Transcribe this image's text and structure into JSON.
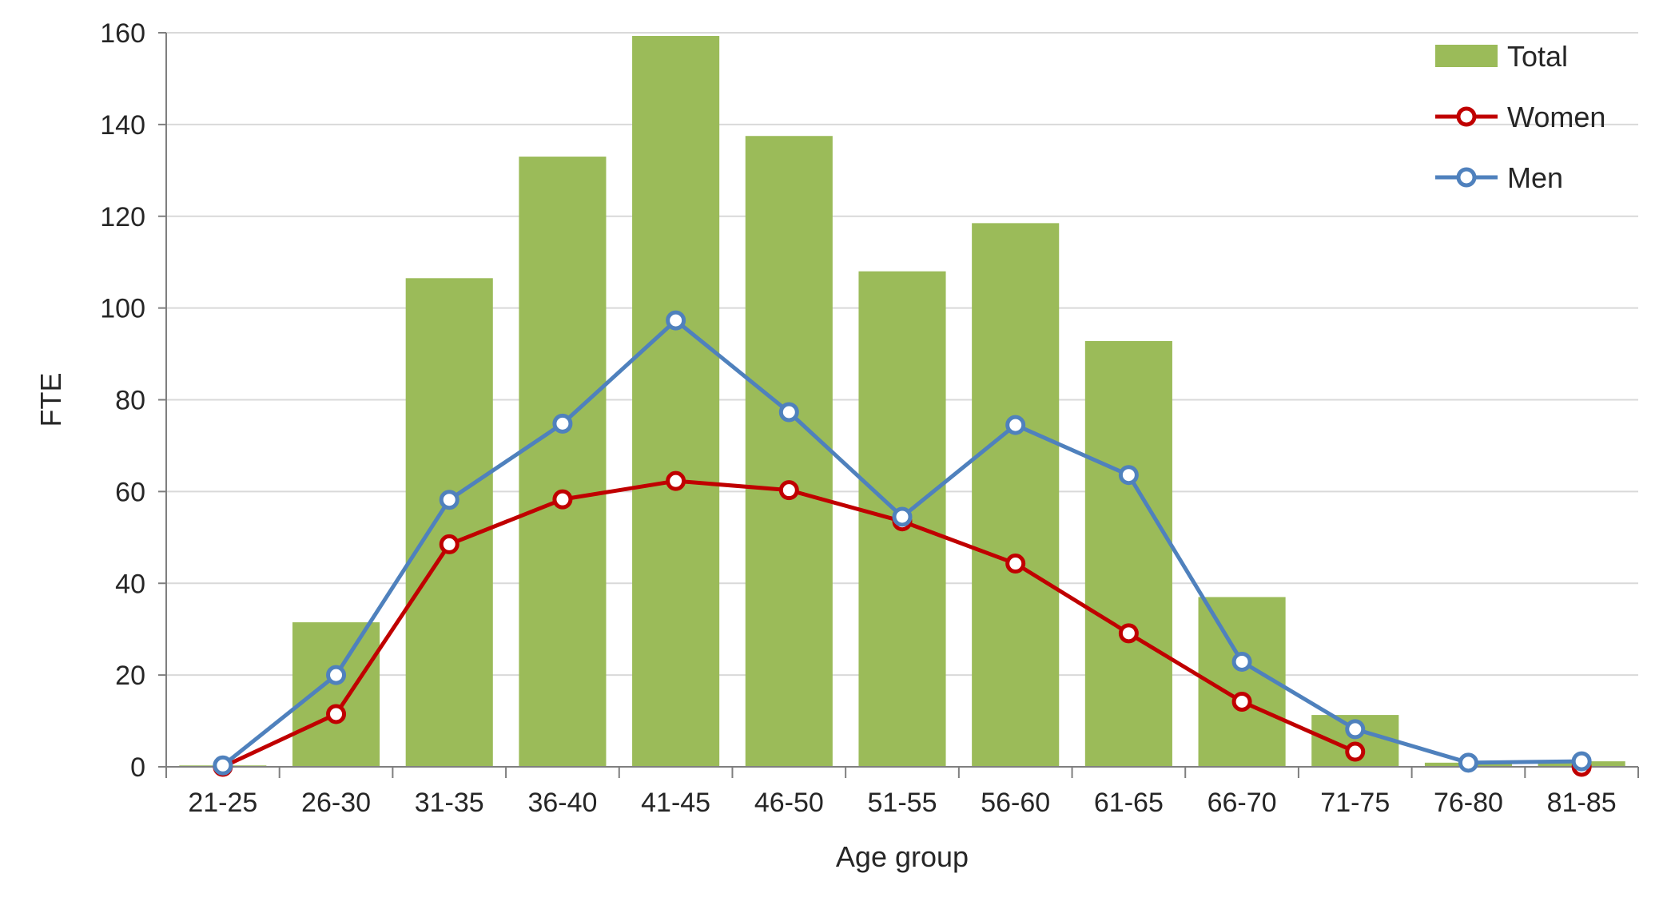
{
  "chart_data": {
    "type": "bar",
    "title": "",
    "xlabel": "Age group",
    "ylabel": "FTE",
    "ylim": [
      0,
      160
    ],
    "yticks": [
      0,
      20,
      40,
      60,
      80,
      100,
      120,
      140,
      160
    ],
    "grid": true,
    "legend_position": "top-right",
    "categories": [
      "21-25",
      "26-30",
      "31-35",
      "36-40",
      "41-45",
      "46-50",
      "51-55",
      "56-60",
      "61-65",
      "66-70",
      "71-75",
      "76-80",
      "81-85"
    ],
    "series": [
      {
        "name": "Total",
        "kind": "bar",
        "color": "#9bbb59",
        "values": [
          0.3,
          31.5,
          106.5,
          133,
          159.3,
          137.5,
          108,
          118.5,
          92.8,
          37,
          11.3,
          0.9,
          1.2
        ]
      },
      {
        "name": "Women",
        "kind": "line",
        "color": "#c00000",
        "values": [
          0,
          11.5,
          48.5,
          58.3,
          62.3,
          60.3,
          53.5,
          44.3,
          29.1,
          14.2,
          3.3,
          null,
          0
        ]
      },
      {
        "name": "Men",
        "kind": "line",
        "color": "#4f81bd",
        "values": [
          0.3,
          20,
          58.2,
          74.8,
          97.3,
          77.3,
          54.5,
          74.5,
          63.6,
          22.9,
          8.2,
          0.9,
          1.2
        ]
      }
    ]
  }
}
